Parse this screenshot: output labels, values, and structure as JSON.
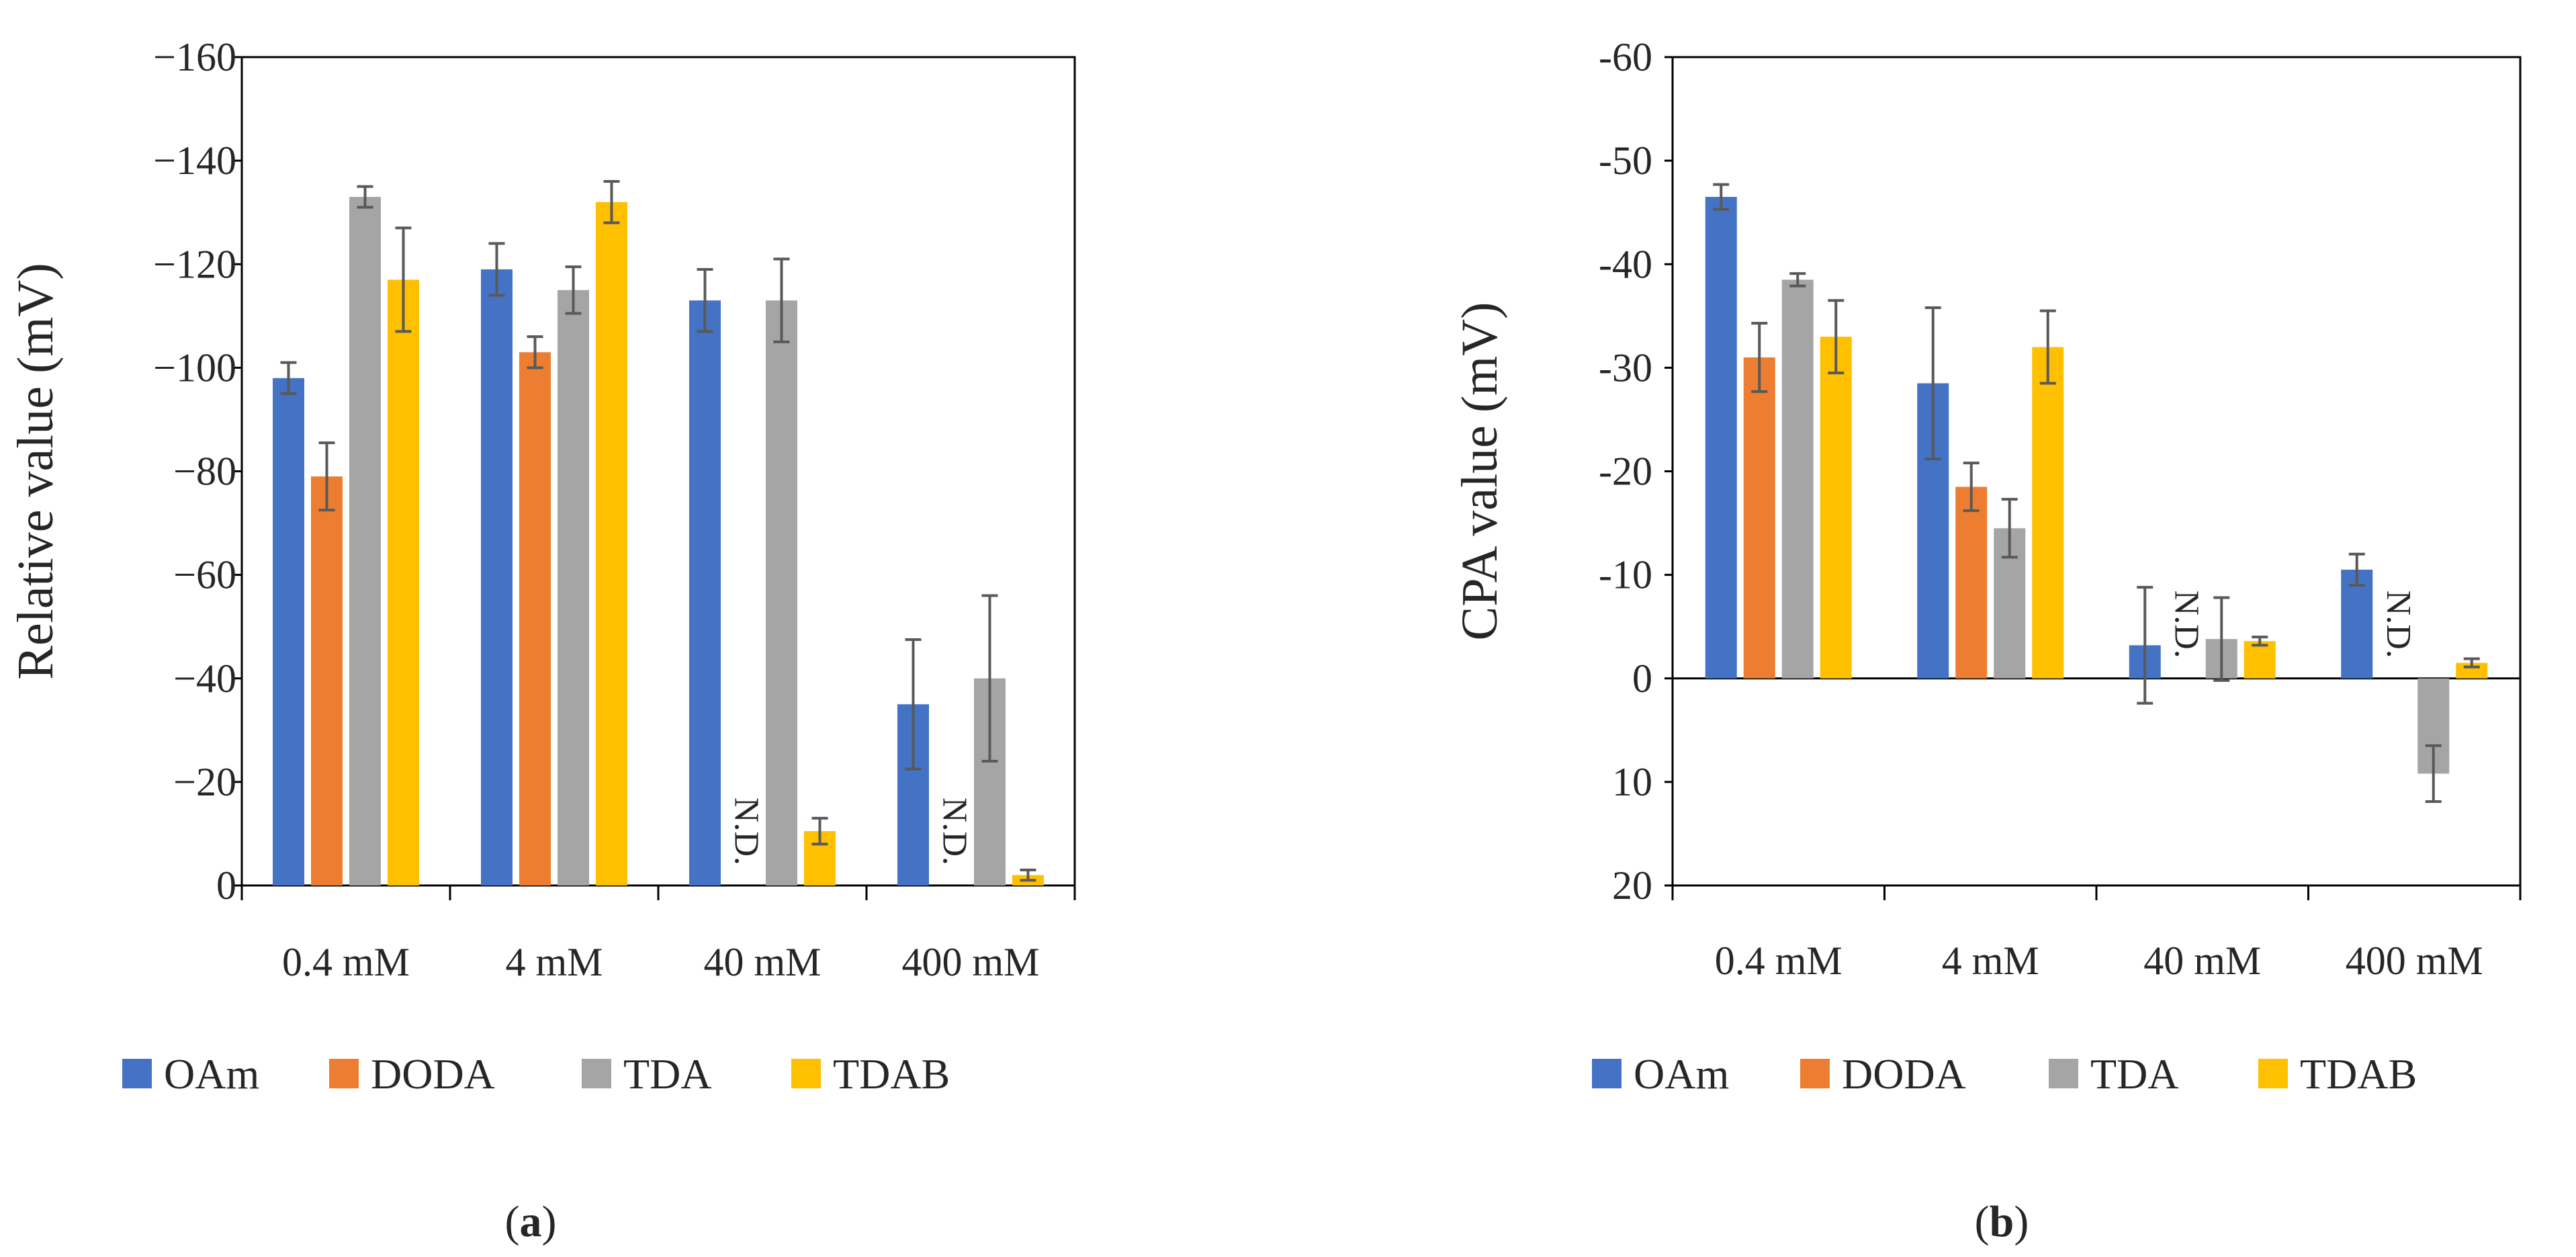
{
  "figure": {
    "colors": {
      "OAm": "#4472C4",
      "DODA": "#ED7D31",
      "TDA": "#A5A5A5",
      "TDAB": "#FFC000",
      "axis": "#000000",
      "error": "#595959"
    }
  },
  "chart_data": [
    {
      "id": "a",
      "type": "bar",
      "panel_label": "(a)",
      "categories": [
        "0.4 mM",
        "4 mM",
        "40 mM",
        "400 mM"
      ],
      "ylabel": "Relative value  (mV)",
      "xlabel": "",
      "ylim": [
        0,
        -160
      ],
      "yticks": [
        0,
        -20,
        -40,
        -60,
        -80,
        -100,
        -120,
        -140,
        -160
      ],
      "ytick_labels": [
        "0",
        "−20",
        "−40",
        "−60",
        "−80",
        "−100",
        "−120",
        "−140",
        "−160"
      ],
      "zero_line": false,
      "series": [
        {
          "name": "OAm",
          "values": [
            -98,
            -119,
            -113,
            -35
          ],
          "errors": [
            3,
            5,
            6,
            12.5
          ]
        },
        {
          "name": "DODA",
          "values": [
            -79,
            -103,
            null,
            null
          ],
          "errors": [
            6.5,
            3,
            null,
            null
          ]
        },
        {
          "name": "TDA",
          "values": [
            -133,
            -115,
            -113,
            -40
          ],
          "errors": [
            2,
            4.5,
            8,
            16
          ]
        },
        {
          "name": "TDAB",
          "values": [
            -117,
            -132,
            -10.5,
            -2
          ],
          "errors": [
            10,
            4,
            2.5,
            1
          ]
        }
      ],
      "annotations": [
        {
          "text": "N.D.",
          "category": "40 mM",
          "series": "DODA"
        },
        {
          "text": "N.D.",
          "category": "400 mM",
          "series": "DODA"
        }
      ],
      "legend": [
        "OAm",
        "DODA",
        "TDA",
        "TDAB"
      ],
      "legend_position": "bottom"
    },
    {
      "id": "b",
      "type": "bar",
      "panel_label": "(b)",
      "categories": [
        "0.4 mM",
        "4 mM",
        "40 mM",
        "400 mM"
      ],
      "ylabel": "CPA value (mV)",
      "xlabel": "",
      "ylim": [
        20,
        -60
      ],
      "yticks": [
        20,
        10,
        0,
        -10,
        -20,
        -30,
        -40,
        -50,
        -60
      ],
      "ytick_labels": [
        "20",
        "10",
        "0",
        "-10",
        "-20",
        "-30",
        "-40",
        "-50",
        "-60"
      ],
      "zero_line": true,
      "series": [
        {
          "name": "OAm",
          "values": [
            -46.5,
            -28.5,
            -3.2,
            -10.5
          ],
          "errors": [
            1.2,
            7.3,
            5.6,
            1.5
          ]
        },
        {
          "name": "DODA",
          "values": [
            -31,
            -18.5,
            null,
            null
          ],
          "errors": [
            3.3,
            2.3,
            null,
            null
          ]
        },
        {
          "name": "TDA",
          "values": [
            -38.5,
            -14.5,
            -3.8,
            9.2
          ],
          "errors": [
            0.6,
            2.8,
            4,
            2.7
          ]
        },
        {
          "name": "TDAB",
          "values": [
            -33,
            -32,
            -3.6,
            -1.5
          ],
          "errors": [
            3.5,
            3.5,
            0.4,
            0.4
          ]
        }
      ],
      "annotations": [
        {
          "text": "N.D.",
          "category": "40 mM",
          "series": "DODA"
        },
        {
          "text": "N.D.",
          "category": "400 mM",
          "series": "DODA"
        }
      ],
      "legend": [
        "OAm",
        "DODA",
        "TDA",
        "TDAB"
      ],
      "legend_position": "bottom"
    }
  ]
}
